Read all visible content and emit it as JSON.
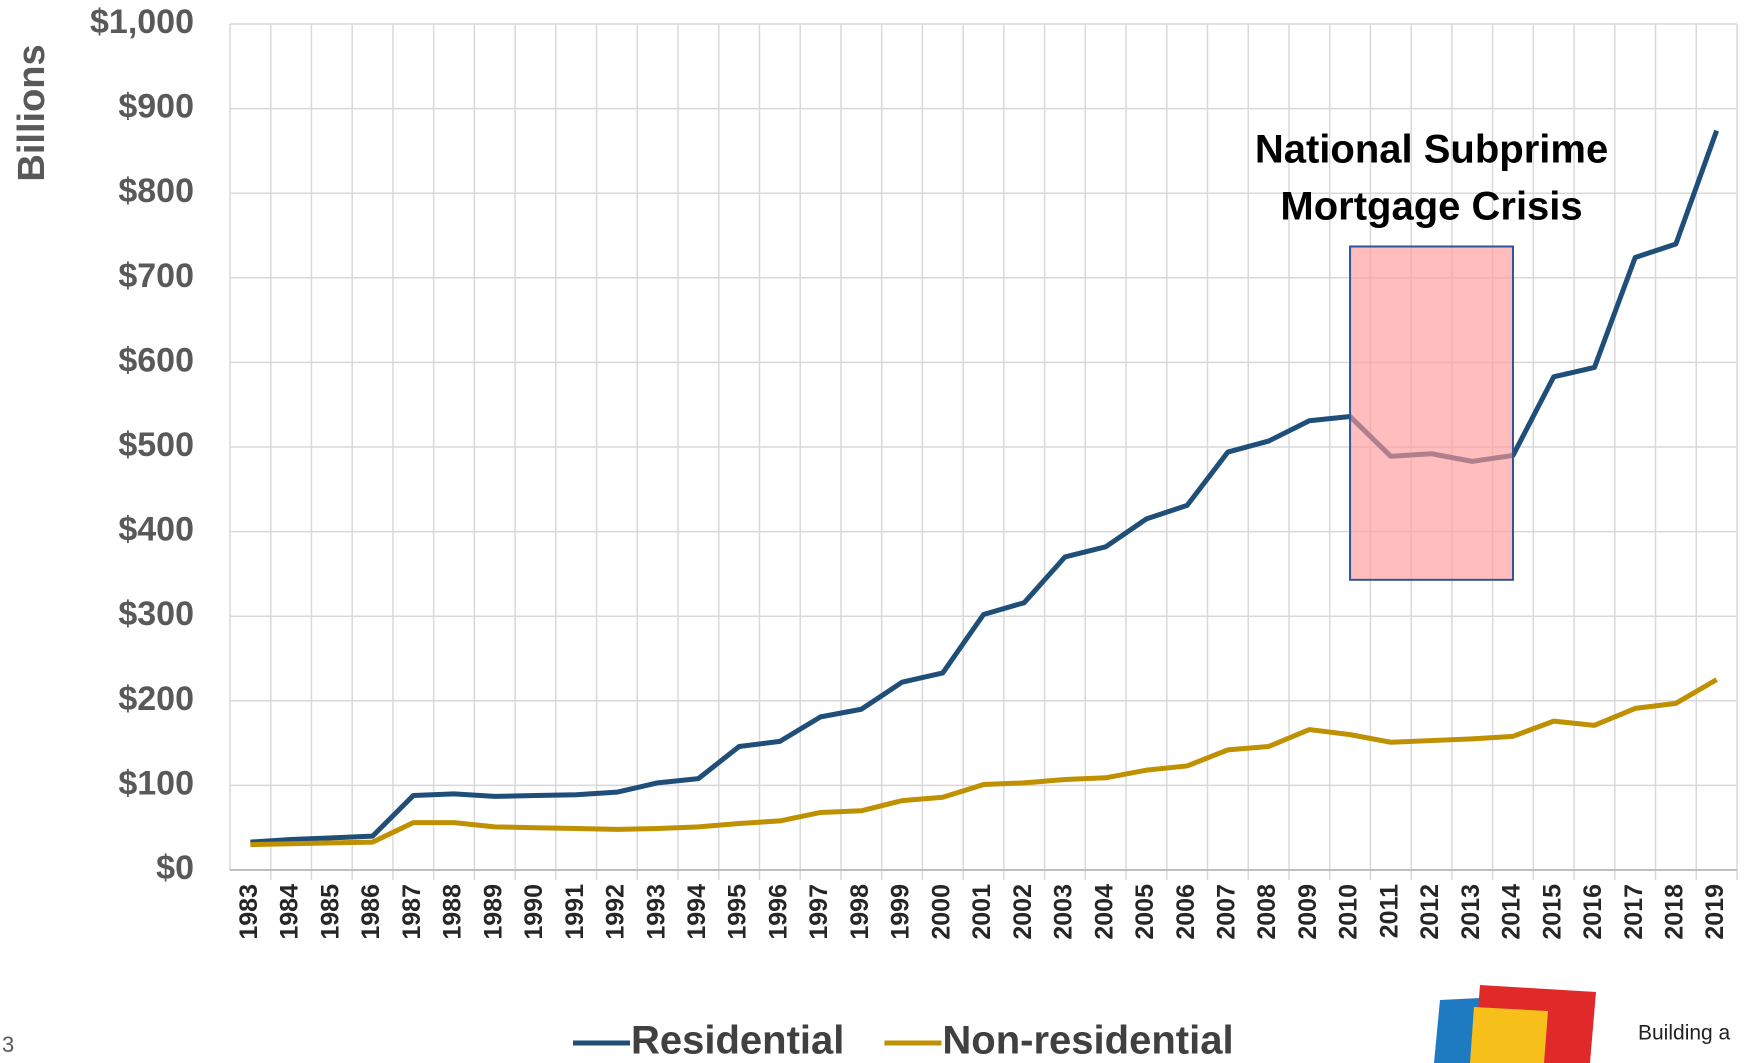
{
  "chart_data": {
    "type": "line",
    "y_axis_label": "Billions",
    "categories": [
      "1983",
      "1984",
      "1985",
      "1986",
      "1987",
      "1988",
      "1989",
      "1990",
      "1991",
      "1992",
      "1993",
      "1994",
      "1995",
      "1996",
      "1997",
      "1998",
      "1999",
      "2000",
      "2001",
      "2002",
      "2003",
      "2004",
      "2005",
      "2006",
      "2007",
      "2008",
      "2009",
      "2010",
      "2011",
      "2012",
      "2013",
      "2014",
      "2015",
      "2016",
      "2017",
      "2018",
      "2019"
    ],
    "series": [
      {
        "name": "Residential",
        "color": "#1f4e79",
        "values": [
          33,
          36,
          38,
          40,
          88,
          90,
          87,
          88,
          89,
          92,
          103,
          108,
          146,
          152,
          181,
          190,
          222,
          233,
          302,
          316,
          370,
          382,
          415,
          431,
          494,
          507,
          531,
          536,
          489,
          492,
          483,
          490,
          583,
          594,
          724,
          740,
          874
        ]
      },
      {
        "name": "Non-residential",
        "color": "#bf9000",
        "values": [
          30,
          31,
          32,
          33,
          56,
          56,
          51,
          50,
          49,
          48,
          49,
          51,
          55,
          58,
          68,
          70,
          82,
          86,
          101,
          103,
          107,
          109,
          118,
          123,
          142,
          146,
          166,
          160,
          151,
          153,
          155,
          158,
          176,
          171,
          191,
          197,
          225
        ]
      }
    ],
    "ylim": [
      0,
      1000
    ],
    "yticks": [
      {
        "value": 0,
        "label": "$0"
      },
      {
        "value": 100,
        "label": "$100"
      },
      {
        "value": 200,
        "label": "$200"
      },
      {
        "value": 300,
        "label": "$300"
      },
      {
        "value": 400,
        "label": "$400"
      },
      {
        "value": 500,
        "label": "$500"
      },
      {
        "value": 600,
        "label": "$600"
      },
      {
        "value": 700,
        "label": "$700"
      },
      {
        "value": 800,
        "label": "$800"
      },
      {
        "value": 900,
        "label": "$900"
      },
      {
        "value": 1000,
        "label": "$1,000"
      }
    ],
    "grid": true,
    "annotation": {
      "lines": [
        "National Subprime",
        "Mortgage Crisis"
      ],
      "from": "2010",
      "to": "2014",
      "yrange": [
        343,
        737
      ],
      "color": "#ff9999"
    }
  },
  "page_number": "3",
  "logo_text": "Building a"
}
